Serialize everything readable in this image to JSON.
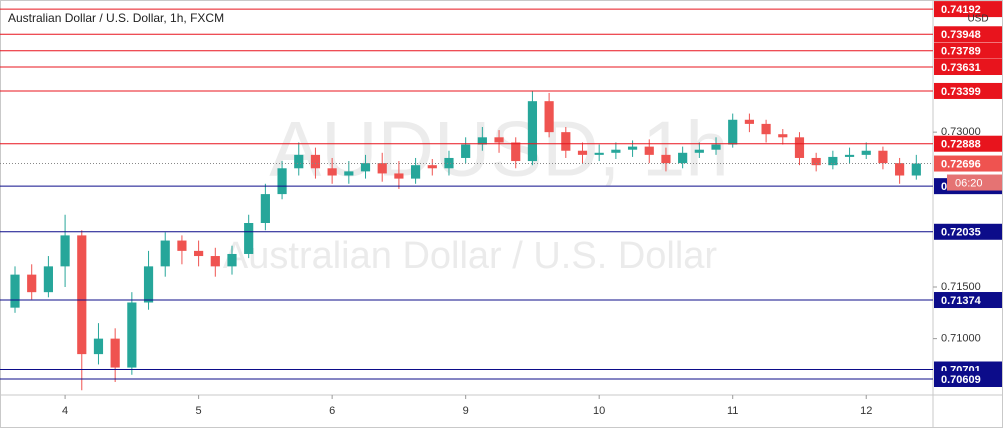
{
  "chart_data": {
    "type": "candlestick",
    "title": "Australian Dollar / U.S. Dollar, 1h, FXCM",
    "watermark": "AUDUSD, 1h",
    "watermark_subtitle": "Australian Dollar / U.S. Dollar",
    "currency": "USD",
    "countdown": "06:20",
    "current_price": 0.72696,
    "up_color": "#26a69a",
    "down_color": "#ef5350",
    "xlim": [
      -0.45,
      6.5
    ],
    "xticks": [
      {
        "value": 0,
        "label": "4"
      },
      {
        "value": 1,
        "label": "5"
      },
      {
        "value": 2,
        "label": "6"
      },
      {
        "value": 3,
        "label": "9"
      },
      {
        "value": 4,
        "label": "10"
      },
      {
        "value": 5,
        "label": "11"
      },
      {
        "value": 6,
        "label": "12"
      }
    ],
    "ylim": [
      0.70454,
      0.7428
    ],
    "yticks": [
      {
        "value": 0.71,
        "label": "0.71000"
      },
      {
        "value": 0.715,
        "label": "0.71500"
      },
      {
        "value": 0.73,
        "label": "0.73000"
      }
    ],
    "levels": [
      {
        "value": 0.74192,
        "color": "#e8141d"
      },
      {
        "value": 0.73948,
        "color": "#e8141d"
      },
      {
        "value": 0.73789,
        "color": "#e8141d"
      },
      {
        "value": 0.73631,
        "color": "#e8141d"
      },
      {
        "value": 0.73399,
        "color": "#e8141d"
      },
      {
        "value": 0.72888,
        "color": "#e8141d"
      },
      {
        "value": 0.72477,
        "color": "#0c0c8a"
      },
      {
        "value": 0.72035,
        "color": "#0c0c8a"
      },
      {
        "value": 0.71374,
        "color": "#0c0c8a"
      },
      {
        "value": 0.70701,
        "color": "#0c0c8a"
      },
      {
        "value": 0.70609,
        "color": "#0c0c8a"
      }
    ],
    "x": [
      -0.375,
      -0.25,
      -0.125,
      0,
      0.125,
      0.25,
      0.375,
      0.5,
      0.625,
      0.75,
      0.875,
      1,
      1.125,
      1.25,
      1.375,
      1.5,
      1.625,
      1.75,
      1.875,
      2,
      2.125,
      2.25,
      2.375,
      2.5,
      2.625,
      2.75,
      2.875,
      3,
      3.125,
      3.25,
      3.375,
      3.5,
      3.625,
      3.75,
      3.875,
      4,
      4.125,
      4.25,
      4.375,
      4.5,
      4.625,
      4.75,
      4.875,
      5,
      5.125,
      5.25,
      5.375,
      5.5,
      5.625,
      5.75,
      5.875,
      6,
      6.125,
      6.25,
      6.375
    ],
    "open": [
      0.713,
      0.7162,
      0.7145,
      0.717,
      0.72,
      0.7085,
      0.71,
      0.7072,
      0.7135,
      0.717,
      0.7195,
      0.7185,
      0.718,
      0.717,
      0.7182,
      0.7212,
      0.724,
      0.7265,
      0.7278,
      0.7265,
      0.7258,
      0.7262,
      0.727,
      0.726,
      0.7255,
      0.7268,
      0.7265,
      0.7275,
      0.7288,
      0.7295,
      0.729,
      0.7272,
      0.733,
      0.73,
      0.7282,
      0.7278,
      0.728,
      0.7283,
      0.7286,
      0.7278,
      0.727,
      0.728,
      0.7283,
      0.7288,
      0.7312,
      0.7308,
      0.7298,
      0.7295,
      0.7275,
      0.7268,
      0.7276,
      0.7278,
      0.7282,
      0.727,
      0.7258
    ],
    "high": [
      0.717,
      0.7172,
      0.718,
      0.722,
      0.7205,
      0.7115,
      0.711,
      0.7145,
      0.7185,
      0.7203,
      0.72,
      0.7195,
      0.7188,
      0.719,
      0.722,
      0.725,
      0.7272,
      0.729,
      0.7285,
      0.7275,
      0.7272,
      0.7278,
      0.728,
      0.7272,
      0.7275,
      0.7274,
      0.7282,
      0.7295,
      0.7305,
      0.7302,
      0.7295,
      0.734,
      0.7338,
      0.7305,
      0.729,
      0.7288,
      0.729,
      0.7292,
      0.7293,
      0.7285,
      0.7286,
      0.729,
      0.7295,
      0.7318,
      0.7318,
      0.7312,
      0.7303,
      0.73,
      0.728,
      0.7282,
      0.7285,
      0.729,
      0.7286,
      0.7275,
      0.7278
    ],
    "low": [
      0.7125,
      0.7138,
      0.714,
      0.715,
      0.705,
      0.7075,
      0.7058,
      0.7065,
      0.7128,
      0.716,
      0.7172,
      0.717,
      0.716,
      0.7162,
      0.7178,
      0.7205,
      0.7235,
      0.7258,
      0.7255,
      0.725,
      0.725,
      0.7255,
      0.7252,
      0.7245,
      0.725,
      0.7258,
      0.7258,
      0.727,
      0.7282,
      0.728,
      0.7265,
      0.7268,
      0.7295,
      0.7275,
      0.727,
      0.7272,
      0.7274,
      0.7276,
      0.727,
      0.7262,
      0.7265,
      0.7275,
      0.7278,
      0.7285,
      0.73,
      0.729,
      0.7288,
      0.7268,
      0.7262,
      0.7264,
      0.727,
      0.7274,
      0.7264,
      0.725,
      0.7254
    ],
    "close": [
      0.7162,
      0.7145,
      0.717,
      0.72,
      0.7085,
      0.71,
      0.7072,
      0.7135,
      0.717,
      0.7195,
      0.7185,
      0.718,
      0.717,
      0.7182,
      0.7212,
      0.724,
      0.7265,
      0.7278,
      0.7265,
      0.7258,
      0.7262,
      0.727,
      0.726,
      0.7255,
      0.7268,
      0.7265,
      0.7275,
      0.7288,
      0.7295,
      0.729,
      0.7272,
      0.733,
      0.73,
      0.7282,
      0.7278,
      0.728,
      0.7283,
      0.7286,
      0.7278,
      0.727,
      0.728,
      0.7283,
      0.7288,
      0.7312,
      0.7308,
      0.7298,
      0.7295,
      0.7275,
      0.7268,
      0.7276,
      0.7278,
      0.7282,
      0.727,
      0.7258,
      0.72696
    ]
  }
}
